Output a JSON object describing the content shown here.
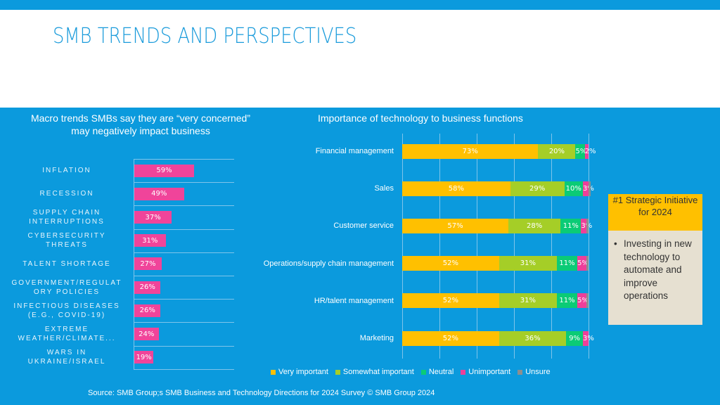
{
  "title": "SMB TRENDS AND PERSPECTIVES",
  "chart_data": [
    {
      "type": "bar",
      "orientation": "horizontal",
      "title": "Macro trends SMBs say they are “very concerned” may negatively impact business",
      "categories": [
        "INFLATION",
        "RECESSION",
        "SUPPLY CHAIN INTERRUPTIONS",
        "CYBERSECURITY THREATS",
        "TALENT SHORTAGE",
        "GOVERNMENT/REGULATORY POLICIES",
        "INFECTIOUS DISEASES (E.G., COVID-19)",
        "EXTREME WEATHER/CLIMATE...",
        "WARS IN UKRAINE/ISRAEL"
      ],
      "values": [
        59,
        49,
        37,
        31,
        27,
        26,
        26,
        24,
        19
      ],
      "data_labels": [
        "59%",
        "49%",
        "37%",
        "31%",
        "27%",
        "26%",
        "26%",
        "24%",
        "19%"
      ],
      "color": "#F0449A",
      "grid": true
    },
    {
      "type": "bar",
      "orientation": "horizontal",
      "stacked": true,
      "title": "Importance of technology to business functions",
      "categories": [
        "Financial management",
        "Sales",
        "Customer service",
        "Operations/supply chain management",
        "HR/talent management",
        "Marketing"
      ],
      "xlim": [
        0,
        100
      ],
      "grid": true,
      "legend_position": "bottom",
      "series": [
        {
          "name": "Very important",
          "color": "#FFC000",
          "values": [
            73,
            58,
            57,
            52,
            52,
            52
          ]
        },
        {
          "name": "Somewhat important",
          "color": "#A5CE27",
          "values": [
            20,
            29,
            28,
            31,
            31,
            36
          ]
        },
        {
          "name": "Neutral",
          "color": "#0BCB76",
          "values": [
            5,
            10,
            11,
            11,
            11,
            9
          ]
        },
        {
          "name": "Unimportant",
          "color": "#EE3F9A",
          "values": [
            2,
            3,
            3,
            5,
            5,
            3
          ]
        },
        {
          "name": "Unsure",
          "color": "#8E8E8E",
          "values": [
            0,
            1,
            1,
            1,
            1,
            0
          ]
        }
      ]
    }
  ],
  "callout": {
    "heading": "#1 Strategic Initiative for 2024",
    "bullet": "Investing in new technology to automate and improve operations"
  },
  "source": "Source: SMB Group;s SMB Business and Technology Directions for 2024 Survey © SMB Group 2024"
}
